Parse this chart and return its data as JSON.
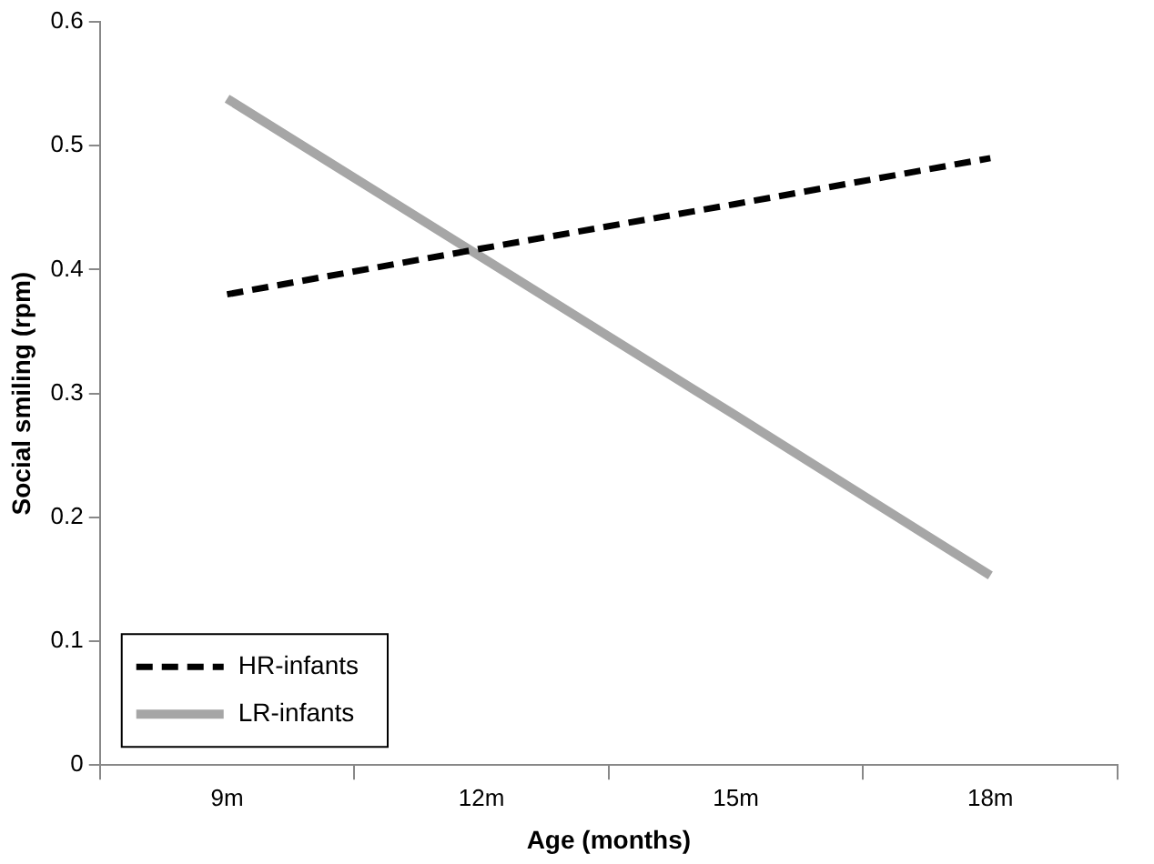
{
  "chart_data": {
    "type": "line",
    "xlabel": "Age (months)",
    "ylabel": "Social smiling (rpm)",
    "categories": [
      "9m",
      "12m",
      "15m",
      "18m"
    ],
    "series": [
      {
        "name": "HR-infants",
        "color": "#000000",
        "line_style": "dashed",
        "values": [
          0.38,
          0.417,
          0.453,
          0.49
        ]
      },
      {
        "name": "LR-infants",
        "color": "#a6a6a6",
        "line_style": "solid",
        "values": [
          0.538,
          0.41,
          0.282,
          0.153
        ]
      }
    ],
    "ylim": [
      0,
      0.6
    ],
    "yticks": [
      0,
      0.1,
      0.2,
      0.3,
      0.4,
      0.5,
      0.6
    ],
    "grid": false,
    "legend": "bottom left",
    "marker": "none"
  }
}
